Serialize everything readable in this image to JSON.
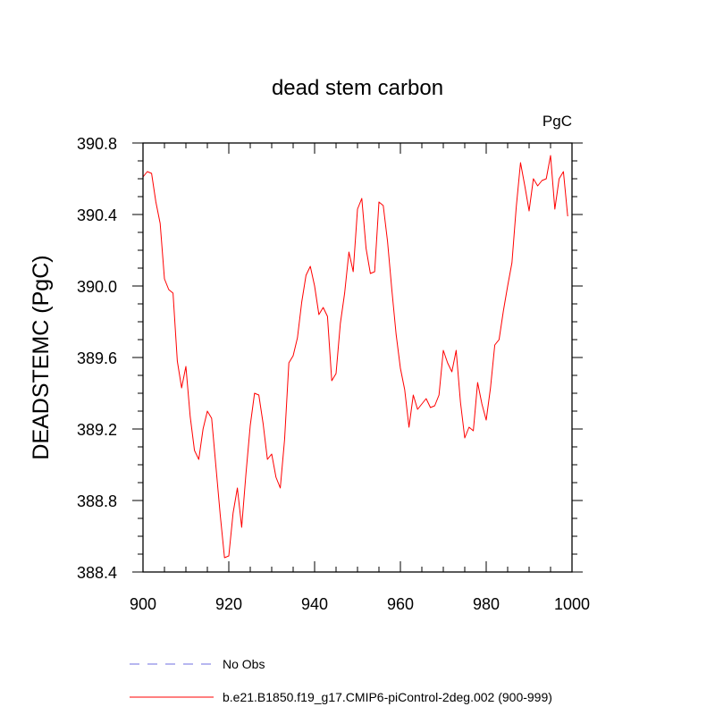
{
  "chart_data": {
    "type": "line",
    "title": "dead stem carbon",
    "units_label": "PgC",
    "xlabel": "",
    "ylabel": "DEADSTEMC  (PgC)",
    "xlim": [
      900,
      1000
    ],
    "ylim": [
      388.4,
      390.8
    ],
    "x_ticks": [
      900,
      920,
      940,
      960,
      980,
      1000
    ],
    "x_tick_labels": [
      "900",
      "920",
      "940",
      "960",
      "980",
      "1000"
    ],
    "y_ticks": [
      388.4,
      388.8,
      389.2,
      389.6,
      390.0,
      390.4,
      390.8
    ],
    "y_tick_labels": [
      "388.4",
      "388.8",
      "389.2",
      "389.6",
      "390.0",
      "390.4",
      "390.8"
    ],
    "legend": [
      {
        "name": "No Obs",
        "color": "#6f6fe0",
        "style": "dashed"
      },
      {
        "name": "b.e21.B1850.f19_g17.CMIP6-piControl-2deg.002 (900-999)",
        "color": "#ff0000",
        "style": "solid"
      }
    ],
    "series": [
      {
        "name": "b.e21.B1850.f19_g17.CMIP6-piControl-2deg.002 (900-999)",
        "color": "#ff0000",
        "x": [
          900,
          901,
          902,
          903,
          904,
          905,
          906,
          907,
          908,
          909,
          910,
          911,
          912,
          913,
          914,
          915,
          916,
          917,
          918,
          919,
          920,
          921,
          922,
          923,
          924,
          925,
          926,
          927,
          928,
          929,
          930,
          931,
          932,
          933,
          934,
          935,
          936,
          937,
          938,
          939,
          940,
          941,
          942,
          943,
          944,
          945,
          946,
          947,
          948,
          949,
          950,
          951,
          952,
          953,
          954,
          955,
          956,
          957,
          958,
          959,
          960,
          961,
          962,
          963,
          964,
          965,
          966,
          967,
          968,
          969,
          970,
          971,
          972,
          973,
          974,
          975,
          976,
          977,
          978,
          979,
          980,
          981,
          982,
          983,
          984,
          985,
          986,
          987,
          988,
          989,
          990,
          991,
          992,
          993,
          994,
          995,
          996,
          997,
          998,
          999
        ],
        "y": [
          390.61,
          390.64,
          390.63,
          390.47,
          390.35,
          390.04,
          389.98,
          389.96,
          389.58,
          389.43,
          389.55,
          389.27,
          389.08,
          389.03,
          389.2,
          389.3,
          389.26,
          388.99,
          388.72,
          388.48,
          388.49,
          388.73,
          388.87,
          388.65,
          388.95,
          389.22,
          389.4,
          389.39,
          389.23,
          389.03,
          389.06,
          388.93,
          388.87,
          389.14,
          389.57,
          389.61,
          389.71,
          389.91,
          390.06,
          390.11,
          390.0,
          389.84,
          389.88,
          389.83,
          389.47,
          389.51,
          389.79,
          389.96,
          390.19,
          390.08,
          390.43,
          390.49,
          390.21,
          390.07,
          390.08,
          390.47,
          390.45,
          390.25,
          389.98,
          389.73,
          389.54,
          389.42,
          389.21,
          389.39,
          389.31,
          389.34,
          389.37,
          389.32,
          389.33,
          389.39,
          389.64,
          389.57,
          389.52,
          389.64,
          389.35,
          389.15,
          389.21,
          389.19,
          389.46,
          389.34,
          389.25,
          389.43,
          389.67,
          389.7,
          389.86,
          390.0,
          390.13,
          390.44,
          390.69,
          390.56,
          390.42,
          390.6,
          390.56,
          390.59,
          390.6,
          390.73,
          390.43,
          390.6,
          390.64,
          390.39
        ]
      }
    ]
  }
}
